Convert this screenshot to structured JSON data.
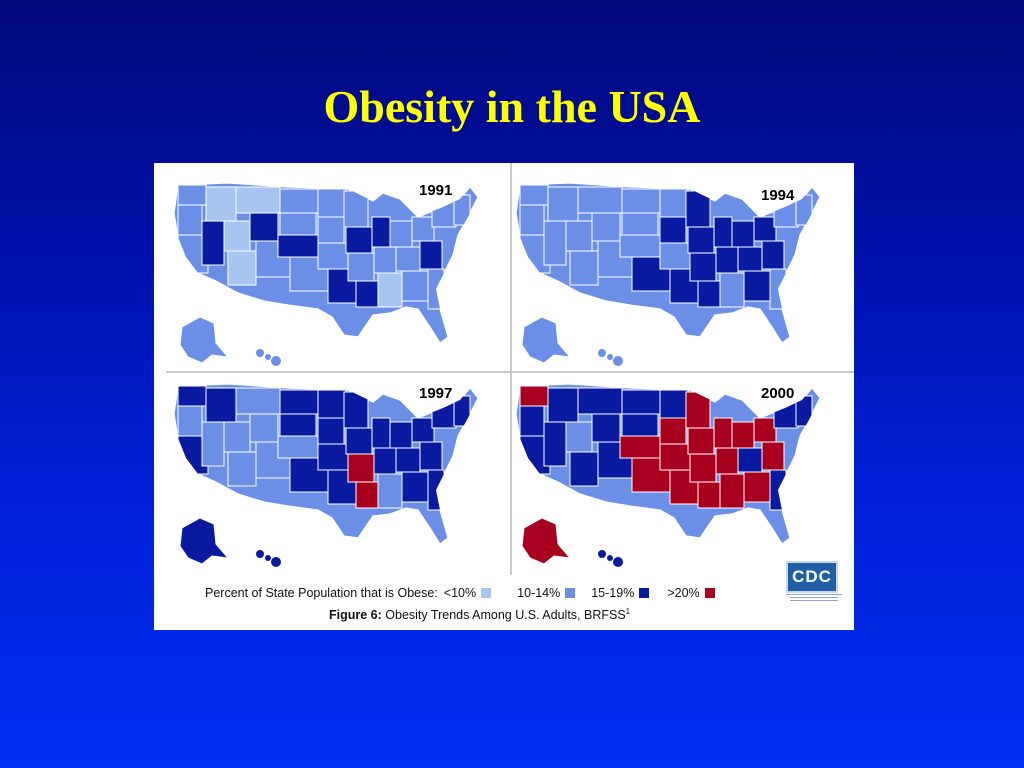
{
  "title": "Obesity in the USA",
  "colors": {
    "lt10": "#a8c4f0",
    "r10_14": "#6b8fe6",
    "r15_19": "#0a1aa0",
    "gt20": "#a8001e"
  },
  "maps": [
    {
      "year": "1991"
    },
    {
      "year": "1994"
    },
    {
      "year": "1997"
    },
    {
      "year": "2000"
    }
  ],
  "legend": {
    "lead": "Percent of State Population that is Obese:",
    "items": [
      {
        "label": "<10%",
        "color": "#a8c4f0"
      },
      {
        "label": "10-14%",
        "color": "#6b8fe6"
      },
      {
        "label": "15-19%",
        "color": "#0a1aa0"
      },
      {
        "label": ">20%",
        "color": "#a8001e"
      }
    ]
  },
  "caption": {
    "label": "Figure 6:",
    "text": "Obesity Trends Among U.S. Adults, BRFSS",
    "sup": "1"
  },
  "logo": {
    "text": "CDC",
    "icon": "cdc-logo-icon"
  }
}
